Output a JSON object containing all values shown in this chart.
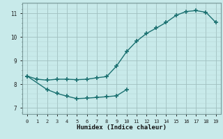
{
  "xlabel": "Humidex (Indice chaleur)",
  "bg_color": "#c8eaea",
  "line_color": "#1a7070",
  "grid_color_minor": "#b5d5d5",
  "grid_color_major": "#a0c0c0",
  "xlim": [
    -0.5,
    19.5
  ],
  "ylim": [
    6.75,
    11.45
  ],
  "xticks": [
    0,
    1,
    2,
    3,
    4,
    5,
    6,
    7,
    8,
    9,
    10,
    11,
    12,
    13,
    14,
    15,
    16,
    17,
    18,
    19
  ],
  "yticks": [
    7,
    8,
    9,
    10,
    11
  ],
  "upper_x": [
    0,
    1,
    2,
    3,
    4,
    5,
    6,
    7,
    8,
    9,
    10,
    11,
    12,
    13,
    14,
    15,
    16,
    17,
    18,
    19
  ],
  "upper_y": [
    8.35,
    8.22,
    8.18,
    8.22,
    8.22,
    8.2,
    8.22,
    8.28,
    8.33,
    8.78,
    9.38,
    9.82,
    10.15,
    10.38,
    10.62,
    10.92,
    11.08,
    11.12,
    11.05,
    10.62
  ],
  "lower_x": [
    0,
    2,
    3,
    4,
    5,
    6,
    7,
    8,
    9,
    10
  ],
  "lower_y": [
    8.35,
    7.78,
    7.62,
    7.5,
    7.4,
    7.42,
    7.45,
    7.48,
    7.52,
    7.78
  ]
}
